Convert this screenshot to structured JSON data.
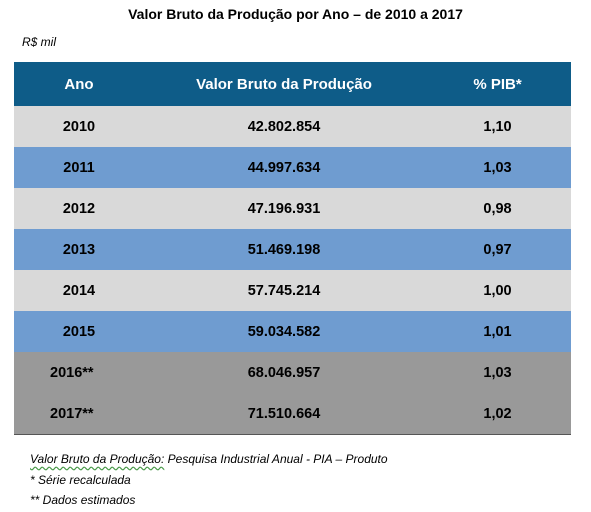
{
  "title": "Valor Bruto da Produção por Ano – de 2010 a 2017",
  "unit": "R$ mil",
  "table": {
    "headers": [
      "Ano",
      "Valor Bruto da Produção",
      "% PIB*"
    ],
    "rows": [
      {
        "year": "2010",
        "value": "42.802.854",
        "pib": "1,10"
      },
      {
        "year": "2011",
        "value": "44.997.634",
        "pib": "1,03"
      },
      {
        "year": "2012",
        "value": "47.196.931",
        "pib": "0,98"
      },
      {
        "year": "2013",
        "value": "51.469.198",
        "pib": "0,97"
      },
      {
        "year": "2014",
        "value": "57.745.214",
        "pib": "1,00"
      },
      {
        "year": "2015",
        "value": "59.034.582",
        "pib": "1,01"
      },
      {
        "year": "2016**",
        "value": "68.046.957",
        "pib": "1,03"
      },
      {
        "year": "2017**",
        "value": "71.510.664",
        "pib": "1,02"
      }
    ]
  },
  "notes": {
    "source_label": "Valor Bruto da Produção:",
    "source_text": "Pesquisa Industrial Anual - PIA – Produto",
    "note1": "* Série recalculada",
    "note2": "** Dados estimados"
  },
  "colors": {
    "header_bg": "#0e5c88",
    "row_light": "#d9d9d9",
    "row_blue": "#6f9cd0",
    "row_estimated": "#999999"
  }
}
